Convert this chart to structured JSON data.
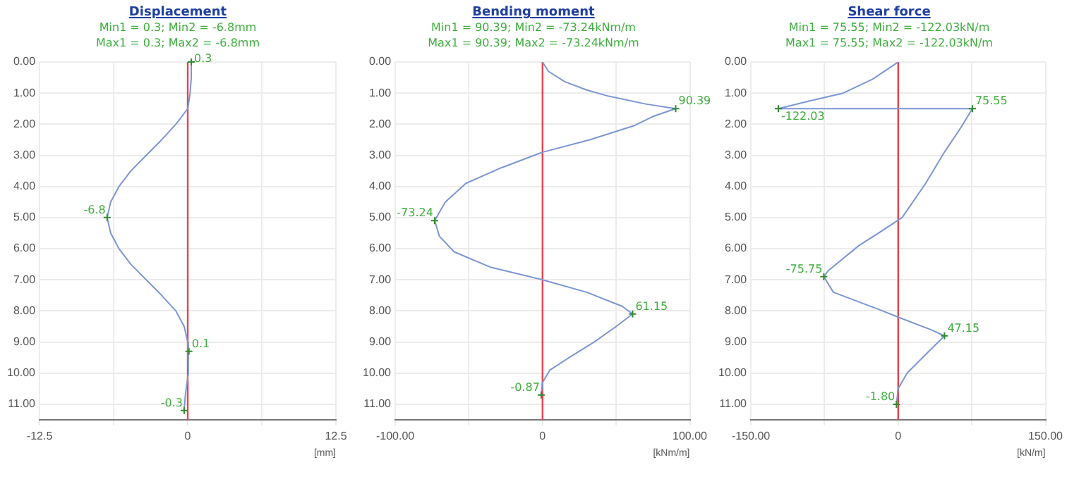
{
  "chart_data": [
    {
      "type": "line",
      "title": "Displacement",
      "subtitle": "Min1 = 0.3; Min2 = -6.8mm\nMax1 = 0.3; Max2 = -6.8mm",
      "xlabel": "[mm]",
      "xlim": [
        -12.5,
        12.5
      ],
      "xticks": [
        -12.5,
        {
          "value": -6.25,
          "label": null
        },
        0,
        {
          "value": 6.25,
          "label": null
        },
        12.5
      ],
      "ylim": [
        11.5,
        0
      ],
      "yticks": [
        {
          "value": 0,
          "label": "0.00"
        },
        {
          "value": 1,
          "label": "1.00"
        },
        {
          "value": 2,
          "label": "2.00"
        },
        {
          "value": 3,
          "label": "3.00"
        },
        {
          "value": 4,
          "label": "4.00"
        },
        {
          "value": 5,
          "label": "5.00"
        },
        {
          "value": 6,
          "label": "6.00"
        },
        {
          "value": 7,
          "label": "7.00"
        },
        {
          "value": 8,
          "label": "8.00"
        },
        {
          "value": 9,
          "label": "9.00"
        },
        {
          "value": 10,
          "label": "10.00"
        },
        {
          "value": 11,
          "label": "11.00"
        }
      ],
      "grid": true,
      "legend": false,
      "marker": "none",
      "series": [
        {
          "color": "#7b96d4",
          "x": [
            0.3,
            0.3,
            0.2,
            0,
            -1,
            -2.2,
            -3.5,
            -4.8,
            -5.8,
            -6.5,
            -6.8,
            -6.5,
            -5.8,
            -4.8,
            -3.5,
            -2.2,
            -1,
            -0.3,
            0,
            0.1,
            0,
            -0.2,
            -0.3
          ],
          "values": [
            0,
            0.5,
            1,
            1.5,
            2,
            2.5,
            3,
            3.5,
            4,
            4.5,
            5,
            5.5,
            6,
            6.5,
            7,
            7.5,
            8,
            8.5,
            9,
            9.3,
            10,
            10.7,
            11.2
          ]
        }
      ],
      "ref_lines": [
        {
          "axis": "x",
          "value": 0,
          "color": "#e8414b"
        }
      ],
      "annotations": [
        {
          "text": "0.3",
          "x": 0.3,
          "y": 0
        },
        {
          "text": "-6.8",
          "x": -6.8,
          "y": 5
        },
        {
          "text": "0.1",
          "x": 0.1,
          "y": 9.3
        },
        {
          "text": "-0.3",
          "x": -0.3,
          "y": 11.2
        }
      ]
    },
    {
      "type": "line",
      "title": "Bending moment",
      "subtitle": "Min1 = 90.39; Min2 = -73.24kNm/m\nMax1 = 90.39; Max2 = -73.24kNm/m",
      "xlabel": "[kNm/m]",
      "xlim": [
        -100,
        100
      ],
      "xticks": [
        {
          "value": -100,
          "label": "-100.00"
        },
        {
          "value": -50,
          "label": null
        },
        0,
        {
          "value": 50,
          "label": null
        },
        {
          "value": 100,
          "label": "100.00"
        }
      ],
      "ylim": [
        11.5,
        0
      ],
      "yticks": [
        {
          "value": 0,
          "label": "0.00"
        },
        {
          "value": 1,
          "label": "1.00"
        },
        {
          "value": 2,
          "label": "2.00"
        },
        {
          "value": 3,
          "label": "3.00"
        },
        {
          "value": 4,
          "label": "4.00"
        },
        {
          "value": 5,
          "label": "5.00"
        },
        {
          "value": 6,
          "label": "6.00"
        },
        {
          "value": 7,
          "label": "7.00"
        },
        {
          "value": 8,
          "label": "8.00"
        },
        {
          "value": 9,
          "label": "9.00"
        },
        {
          "value": 10,
          "label": "10.00"
        },
        {
          "value": 11,
          "label": "11.00"
        }
      ],
      "grid": true,
      "legend": false,
      "marker": "none",
      "series": [
        {
          "color": "#7b96d4",
          "x": [
            0,
            4,
            15,
            30,
            45,
            70,
            90.39,
            75,
            62,
            32,
            0,
            -28,
            -52,
            -66,
            -73.24,
            -70,
            -60,
            -35,
            0,
            30,
            54,
            61.15,
            50,
            35,
            18,
            5,
            0,
            -0.87
          ],
          "values": [
            0,
            0.3,
            0.63,
            0.9,
            1.1,
            1.35,
            1.5,
            1.75,
            2.05,
            2.5,
            2.9,
            3.4,
            3.9,
            4.5,
            5.1,
            5.6,
            6.1,
            6.6,
            7,
            7.4,
            7.85,
            8.1,
            8.5,
            9,
            9.5,
            9.9,
            10.3,
            10.7
          ]
        }
      ],
      "ref_lines": [
        {
          "axis": "x",
          "value": 0,
          "color": "#e8414b"
        }
      ],
      "annotations": [
        {
          "text": "90.39",
          "x": 90.39,
          "y": 1.5
        },
        {
          "text": "-73.24",
          "x": -73.24,
          "y": 5.1
        },
        {
          "text": "61.15",
          "x": 61.15,
          "y": 8.1
        },
        {
          "text": "-0.87",
          "x": -0.87,
          "y": 10.7
        }
      ]
    },
    {
      "type": "line",
      "title": "Shear force",
      "subtitle": "Min1 = 75.55; Min2 = -122.03kN/m\nMax1 = 75.55; Max2 = -122.03kN/m",
      "xlabel": "[kN/m]",
      "xlim": [
        -150,
        150
      ],
      "xticks": [
        {
          "value": -150,
          "label": "-150.00"
        },
        {
          "value": -75,
          "label": null
        },
        0,
        {
          "value": 75,
          "label": null
        },
        {
          "value": 150,
          "label": "150.00"
        }
      ],
      "ylim": [
        11.5,
        0
      ],
      "yticks": [
        {
          "value": 0,
          "label": "0.00"
        },
        {
          "value": 1,
          "label": "1.00"
        },
        {
          "value": 2,
          "label": "2.00"
        },
        {
          "value": 3,
          "label": "3.00"
        },
        {
          "value": 4,
          "label": "4.00"
        },
        {
          "value": 5,
          "label": "5.00"
        },
        {
          "value": 6,
          "label": "6.00"
        },
        {
          "value": 7,
          "label": "7.00"
        },
        {
          "value": 8,
          "label": "8.00"
        },
        {
          "value": 9,
          "label": "9.00"
        },
        {
          "value": 10,
          "label": "10.00"
        },
        {
          "value": 11,
          "label": "11.00"
        }
      ],
      "grid": true,
      "legend": false,
      "marker": "none",
      "series": [
        {
          "color": "#7b96d4",
          "x": [
            0,
            -26,
            -56,
            -90,
            -122.03,
            75.55,
            64,
            47,
            28,
            4,
            -20,
            -40,
            -71,
            -75.75,
            -66,
            -20,
            0,
            33,
            47.15,
            28,
            9,
            0,
            -1.8
          ],
          "values": [
            0,
            0.55,
            1,
            1.25,
            1.5,
            1.5,
            2.1,
            2.9,
            3.9,
            5,
            5.5,
            5.9,
            6.7,
            6.9,
            7.4,
            7.95,
            8.2,
            8.6,
            8.8,
            9.4,
            10,
            10.5,
            11
          ]
        }
      ],
      "ref_lines": [
        {
          "axis": "x",
          "value": 0,
          "color": "#e8414b"
        }
      ],
      "annotations": [
        {
          "text": "-122.03",
          "x": -122.03,
          "y": 1.5
        },
        {
          "text": "75.55",
          "x": 75.55,
          "y": 1.5
        },
        {
          "text": "-75.75",
          "x": -75.75,
          "y": 6.9
        },
        {
          "text": "47.15",
          "x": 47.15,
          "y": 8.8
        },
        {
          "text": "-1.80",
          "x": -1.8,
          "y": 11
        }
      ]
    }
  ]
}
